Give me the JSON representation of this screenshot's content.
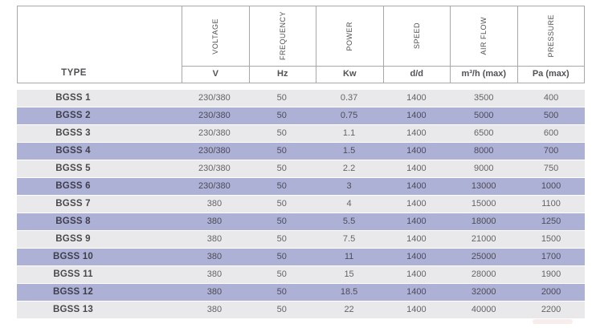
{
  "table": {
    "type_header": "TYPE",
    "columns": [
      {
        "name": "VOLTAGE",
        "unit": "V"
      },
      {
        "name": "FREQUENCY",
        "unit": "Hz"
      },
      {
        "name": "POWER",
        "unit": "Kw"
      },
      {
        "name": "SPEED",
        "unit": "d/d"
      },
      {
        "name": "AIR FLOW",
        "unit": "m³/h (max)"
      },
      {
        "name": "PRESSURE",
        "unit": "Pa (max)"
      }
    ],
    "rows": [
      {
        "type": "BGSS 1",
        "values": [
          "230/380",
          "50",
          "0.37",
          "1400",
          "3500",
          "400"
        ]
      },
      {
        "type": "BGSS 2",
        "values": [
          "230/380",
          "50",
          "0.75",
          "1400",
          "5000",
          "500"
        ]
      },
      {
        "type": "BGSS 3",
        "values": [
          "230/380",
          "50",
          "1.1",
          "1400",
          "6500",
          "600"
        ]
      },
      {
        "type": "BGSS 4",
        "values": [
          "230/380",
          "50",
          "1.5",
          "1400",
          "8000",
          "700"
        ]
      },
      {
        "type": "BGSS 5",
        "values": [
          "230/380",
          "50",
          "2.2",
          "1400",
          "9000",
          "750"
        ]
      },
      {
        "type": "BGSS 6",
        "values": [
          "230/380",
          "50",
          "3",
          "1400",
          "13000",
          "1000"
        ]
      },
      {
        "type": "BGSS 7",
        "values": [
          "380",
          "50",
          "4",
          "1400",
          "15000",
          "1100"
        ]
      },
      {
        "type": "BGSS 8",
        "values": [
          "380",
          "50",
          "5.5",
          "1400",
          "18000",
          "1250"
        ]
      },
      {
        "type": "BGSS 9",
        "values": [
          "380",
          "50",
          "7.5",
          "1400",
          "21000",
          "1500"
        ]
      },
      {
        "type": "BGSS 10",
        "values": [
          "380",
          "50",
          "11",
          "1400",
          "25000",
          "1700"
        ]
      },
      {
        "type": "BGSS 11",
        "values": [
          "380",
          "50",
          "15",
          "1400",
          "28000",
          "1900"
        ]
      },
      {
        "type": "BGSS 12",
        "values": [
          "380",
          "50",
          "18.5",
          "1400",
          "32000",
          "2000"
        ]
      },
      {
        "type": "BGSS 13",
        "values": [
          "380",
          "50",
          "22",
          "1400",
          "40000",
          "2200"
        ]
      }
    ],
    "colors": {
      "border": "#a8a8a8",
      "header_text": "#525256",
      "row_base": "#e9e9eb",
      "row_alt": "#aeb1d6",
      "value_text": "#646468",
      "type_text": "#49494d"
    }
  }
}
